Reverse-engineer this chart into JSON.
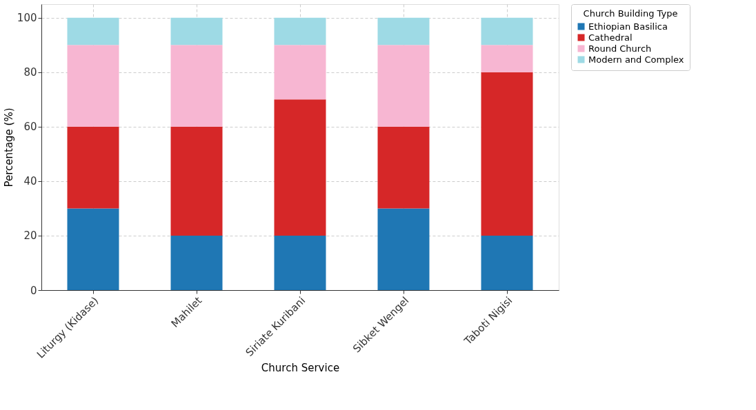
{
  "chart_data": {
    "type": "bar",
    "stacked": true,
    "xlabel": "Church Service",
    "ylabel": "Percentage (%)",
    "legend_title": "Church Building Type",
    "legend": "top right",
    "grid": true,
    "categories": [
      "Liturgy (Kidase)",
      "Mahilet",
      "Siriate Kuribani",
      "Sibket Wengel",
      "Taboti Nigisi"
    ],
    "ylim": [
      0,
      105
    ],
    "yticks": [
      0,
      20,
      40,
      60,
      80,
      100
    ],
    "series": [
      {
        "name": "Ethiopian Basilica",
        "color": "#1f77b4",
        "values": [
          30,
          20,
          20,
          30,
          20
        ]
      },
      {
        "name": "Cathedral",
        "color": "#d62728",
        "values": [
          30,
          40,
          50,
          30,
          60
        ]
      },
      {
        "name": "Round Church",
        "color": "#f7b6d2",
        "values": [
          30,
          30,
          20,
          30,
          10
        ]
      },
      {
        "name": "Modern and Complex",
        "color": "#9edae5",
        "values": [
          10,
          10,
          10,
          10,
          10
        ]
      }
    ]
  }
}
